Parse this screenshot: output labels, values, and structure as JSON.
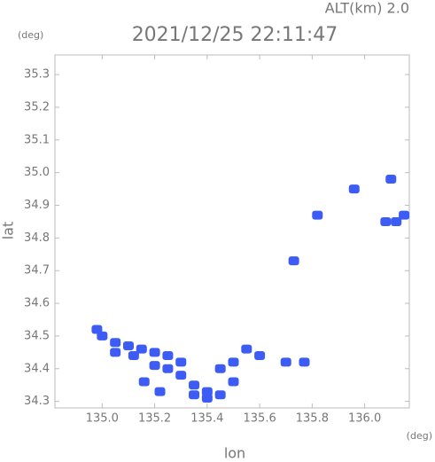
{
  "chart_data": {
    "type": "scatter",
    "title": "2021/12/25 22:11:47",
    "subtitle": "ALT(km) 2.0",
    "x_label": "lon",
    "y_label": "lat",
    "x_unit": "(deg)",
    "y_unit": "(deg)",
    "x": [
      135.0,
      135.05,
      135.1,
      135.15,
      135.2,
      135.25,
      135.2,
      135.25,
      135.3,
      135.35,
      135.4,
      135.45,
      135.4,
      135.35,
      135.3,
      135.12,
      134.98,
      135.05,
      135.5,
      135.55,
      135.6,
      135.7,
      135.77,
      135.45,
      135.5,
      135.16,
      135.22,
      135.73,
      135.82,
      135.96,
      136.1,
      136.15,
      136.12,
      136.08
    ],
    "y": [
      34.5,
      34.48,
      34.47,
      34.46,
      34.45,
      34.44,
      34.41,
      34.4,
      34.38,
      34.35,
      34.33,
      34.32,
      34.31,
      34.32,
      34.42,
      34.44,
      34.52,
      34.45,
      34.36,
      34.46,
      34.44,
      34.42,
      34.42,
      34.4,
      34.42,
      34.36,
      34.33,
      34.73,
      34.87,
      34.95,
      34.98,
      34.87,
      34.85,
      34.85
    ],
    "color": "#3c5cf5",
    "xlim": [
      134.82,
      136.17
    ],
    "ylim": [
      34.28,
      35.36
    ],
    "xticks": [
      {
        "value": 135,
        "label": "135.0"
      },
      135.2,
      135.4,
      135.6,
      135.8,
      {
        "value": 136,
        "label": "136.0"
      }
    ],
    "yticks": [
      {
        "value": 34.3,
        "label": "34.3"
      },
      34.4,
      34.5,
      34.6,
      34.7,
      34.8,
      34.9,
      {
        "value": 35,
        "label": "35.0"
      },
      35.1,
      35.2,
      35.3
    ]
  }
}
